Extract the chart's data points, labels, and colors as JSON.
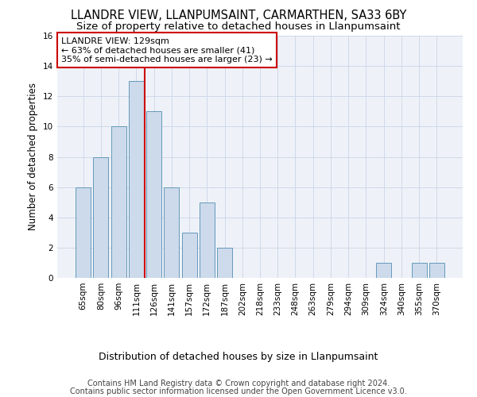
{
  "title": "LLANDRE VIEW, LLANPUMSAINT, CARMARTHEN, SA33 6BY",
  "subtitle": "Size of property relative to detached houses in Llanpumsaint",
  "xlabel": "Distribution of detached houses by size in Llanpumsaint",
  "ylabel": "Number of detached properties",
  "footer_line1": "Contains HM Land Registry data © Crown copyright and database right 2024.",
  "footer_line2": "Contains public sector information licensed under the Open Government Licence v3.0.",
  "categories": [
    "65sqm",
    "80sqm",
    "96sqm",
    "111sqm",
    "126sqm",
    "141sqm",
    "157sqm",
    "172sqm",
    "187sqm",
    "202sqm",
    "218sqm",
    "233sqm",
    "248sqm",
    "263sqm",
    "279sqm",
    "294sqm",
    "309sqm",
    "324sqm",
    "340sqm",
    "355sqm",
    "370sqm"
  ],
  "values": [
    6,
    8,
    10,
    13,
    11,
    6,
    3,
    5,
    2,
    0,
    0,
    0,
    0,
    0,
    0,
    0,
    0,
    1,
    0,
    1,
    1
  ],
  "bar_color": "#ccdaeb",
  "bar_edge_color": "#6699bb",
  "grid_color": "#d0d8e8",
  "annotation_text": "LLANDRE VIEW: 129sqm\n← 63% of detached houses are smaller (41)\n35% of semi-detached houses are larger (23) →",
  "annotation_box_facecolor": "#ffffff",
  "annotation_box_edgecolor": "#cc0000",
  "vline_color": "#cc0000",
  "vline_x": 3.5,
  "ylim": [
    0,
    16
  ],
  "yticks": [
    0,
    2,
    4,
    6,
    8,
    10,
    12,
    14,
    16
  ],
  "background_color": "#eef2f8",
  "title_fontsize": 10.5,
  "subtitle_fontsize": 9.5,
  "tick_fontsize": 7.5,
  "ylabel_fontsize": 8.5,
  "xlabel_fontsize": 9,
  "annotation_fontsize": 8,
  "footer_fontsize": 7
}
